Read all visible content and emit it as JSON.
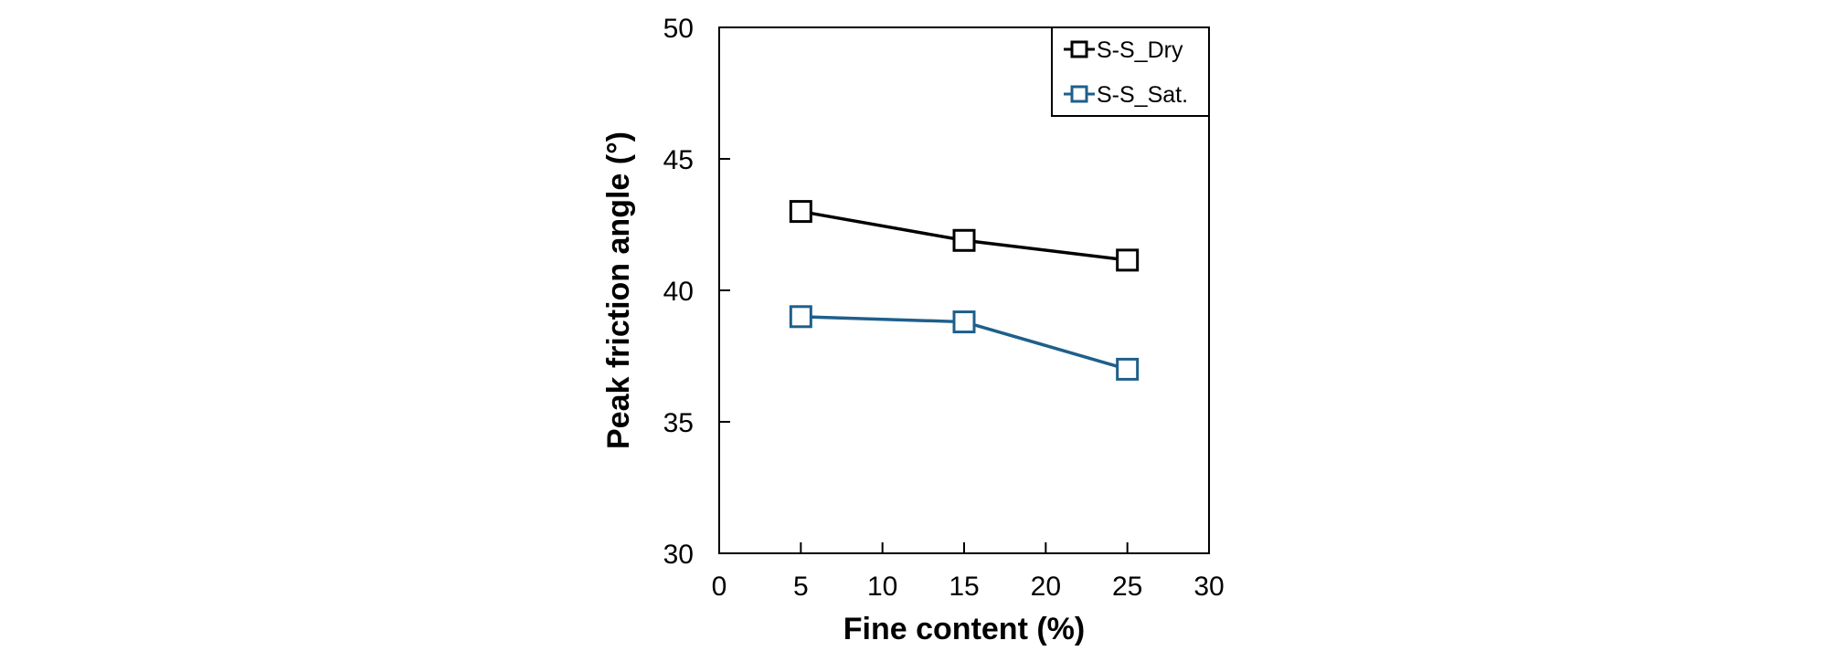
{
  "chart_data": {
    "type": "line",
    "xlabel": "Fine content (%)",
    "ylabel": "Peak friction angle (°)",
    "xlim": [
      0,
      30
    ],
    "ylim": [
      30,
      50
    ],
    "xticks": [
      0,
      5,
      10,
      15,
      20,
      25,
      30
    ],
    "yticks": [
      30,
      35,
      40,
      45,
      50
    ],
    "x": [
      5,
      15,
      25
    ],
    "grid": false,
    "legend_position": "top-right",
    "series": [
      {
        "name": "S-S_Dry",
        "values": [
          43.0,
          41.9,
          41.15
        ],
        "color": "#000000",
        "marker": "open-square"
      },
      {
        "name": "S-S_Sat.",
        "values": [
          39.0,
          38.8,
          37.0
        ],
        "color": "#1f5f8b",
        "marker": "open-square"
      }
    ]
  }
}
